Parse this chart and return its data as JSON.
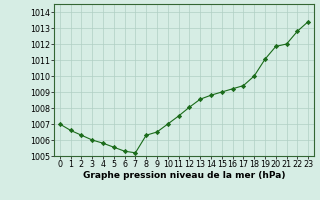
{
  "x": [
    0,
    1,
    2,
    3,
    4,
    5,
    6,
    7,
    8,
    9,
    10,
    11,
    12,
    13,
    14,
    15,
    16,
    17,
    18,
    19,
    20,
    21,
    22,
    23
  ],
  "y": [
    1007.0,
    1006.6,
    1006.3,
    1006.0,
    1005.8,
    1005.55,
    1005.3,
    1005.2,
    1006.3,
    1006.5,
    1007.0,
    1007.5,
    1008.05,
    1008.55,
    1008.8,
    1009.0,
    1009.2,
    1009.4,
    1010.0,
    1011.05,
    1011.85,
    1012.0,
    1012.8,
    1013.4
  ],
  "ylim": [
    1005.0,
    1014.5
  ],
  "xlim": [
    -0.5,
    23.5
  ],
  "yticks": [
    1005,
    1006,
    1007,
    1008,
    1009,
    1010,
    1011,
    1012,
    1013,
    1014
  ],
  "xticks": [
    0,
    1,
    2,
    3,
    4,
    5,
    6,
    7,
    8,
    9,
    10,
    11,
    12,
    13,
    14,
    15,
    16,
    17,
    18,
    19,
    20,
    21,
    22,
    23
  ],
  "xlabel": "Graphe pression niveau de la mer (hPa)",
  "line_color": "#1a6b1a",
  "marker": "D",
  "marker_size": 2.2,
  "bg_color": "#d6ede4",
  "grid_color": "#b0cfc4",
  "axis_color": "#336633",
  "tick_fontsize": 5.8,
  "xlabel_fontsize": 6.5
}
